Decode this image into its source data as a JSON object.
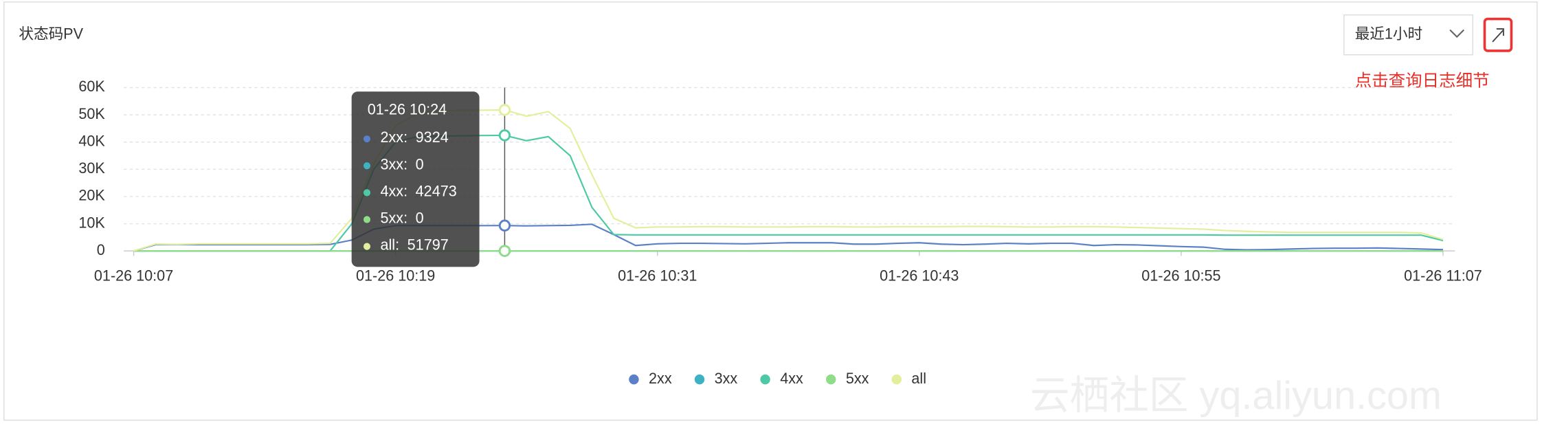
{
  "chart_data": {
    "type": "line",
    "title": "状态码PV",
    "range_selector": "最近1小时",
    "annotation": "点击查询日志细节",
    "watermark": "云栖社区 yq.aliyun.com",
    "categories": [
      "01-26 10:07",
      null,
      null,
      null,
      null,
      null,
      null,
      null,
      null,
      null,
      null,
      null,
      "01-26 10:19",
      null,
      null,
      null,
      null,
      "01-26 10:24",
      null,
      null,
      null,
      null,
      null,
      null,
      "01-26 10:31",
      null,
      null,
      null,
      null,
      null,
      null,
      null,
      null,
      null,
      null,
      null,
      "01-26 10:43",
      null,
      null,
      null,
      null,
      null,
      null,
      null,
      null,
      null,
      null,
      null,
      "01-26 10:55",
      null,
      null,
      null,
      null,
      null,
      null,
      null,
      null,
      null,
      null,
      null,
      "01-26 11:07"
    ],
    "series": [
      {
        "name": "2xx",
        "color": "#5b80c8",
        "values": [
          0,
          2300,
          2300,
          2300,
          2300,
          2300,
          2300,
          2300,
          2300,
          2400,
          4000,
          8000,
          9300,
          9300,
          9300,
          9300,
          9300,
          9324,
          9200,
          9300,
          9400,
          9800,
          6000,
          2000,
          2600,
          2800,
          2800,
          2700,
          2600,
          2800,
          3000,
          3000,
          3000,
          2500,
          2500,
          2800,
          3000,
          2500,
          2300,
          2500,
          2800,
          2600,
          2800,
          2800,
          2000,
          2300,
          2200,
          1900,
          1600,
          1400,
          600,
          400,
          500,
          700,
          900,
          1000,
          1000,
          1100,
          900,
          700,
          500
        ]
      },
      {
        "name": "3xx",
        "color": "#3db2c3",
        "values": [
          0,
          0,
          0,
          0,
          0,
          0,
          0,
          0,
          0,
          0,
          0,
          0,
          0,
          0,
          0,
          0,
          0,
          0,
          0,
          0,
          0,
          0,
          0,
          0,
          0,
          0,
          0,
          0,
          0,
          0,
          0,
          0,
          0,
          0,
          0,
          0,
          0,
          0,
          0,
          0,
          0,
          0,
          0,
          0,
          0,
          0,
          0,
          0,
          0,
          0,
          0,
          0,
          0,
          0,
          0,
          0,
          0,
          0,
          0,
          0,
          0
        ]
      },
      {
        "name": "4xx",
        "color": "#4ec9a5",
        "values": [
          0,
          0,
          0,
          0,
          0,
          0,
          0,
          0,
          0,
          0,
          10000,
          30000,
          40000,
          42000,
          42200,
          42300,
          42400,
          42473,
          40500,
          42000,
          35000,
          16000,
          6000,
          5900,
          5900,
          5900,
          5900,
          5900,
          5900,
          5900,
          5900,
          5900,
          5900,
          5900,
          5900,
          5900,
          5900,
          5900,
          5900,
          5900,
          5900,
          5900,
          5900,
          5900,
          5900,
          5900,
          5900,
          5900,
          5900,
          5900,
          5800,
          5800,
          5800,
          5800,
          5800,
          5800,
          5800,
          5800,
          5800,
          5800,
          3800
        ]
      },
      {
        "name": "5xx",
        "color": "#8fdc89",
        "values": [
          0,
          0,
          0,
          0,
          0,
          0,
          0,
          0,
          0,
          0,
          0,
          0,
          0,
          0,
          0,
          0,
          0,
          0,
          0,
          0,
          0,
          0,
          0,
          0,
          0,
          0,
          0,
          0,
          0,
          0,
          0,
          0,
          0,
          0,
          0,
          0,
          0,
          0,
          0,
          0,
          0,
          0,
          0,
          0,
          0,
          0,
          0,
          0,
          0,
          0,
          0,
          0,
          0,
          0,
          0,
          0,
          0,
          0,
          0,
          0,
          0
        ]
      },
      {
        "name": "all",
        "color": "#e3ef9c",
        "values": [
          0,
          2500,
          2400,
          2600,
          2600,
          2600,
          2600,
          2600,
          2600,
          2800,
          12000,
          32000,
          46000,
          50500,
          51500,
          51700,
          51700,
          51797,
          49500,
          51200,
          45000,
          28000,
          12000,
          8500,
          8800,
          8800,
          8900,
          8900,
          8800,
          8800,
          8800,
          8900,
          8900,
          8800,
          8800,
          8900,
          8900,
          8900,
          9000,
          9000,
          8900,
          8800,
          8800,
          8900,
          8900,
          8800,
          8600,
          8400,
          8200,
          8000,
          7500,
          7200,
          7000,
          6800,
          6800,
          6800,
          6800,
          6800,
          6800,
          6600,
          4200
        ]
      }
    ],
    "ylim": [
      0,
      60000
    ],
    "yticks": [
      0,
      {
        "value": 10000,
        "label": "10K"
      },
      {
        "value": 20000,
        "label": "20K"
      },
      {
        "value": 30000,
        "label": "30K"
      },
      {
        "value": 40000,
        "label": "40K"
      },
      {
        "value": 50000,
        "label": "50K"
      },
      {
        "value": 60000,
        "label": "60K"
      }
    ],
    "grid": true,
    "legend": "bottom"
  }
}
